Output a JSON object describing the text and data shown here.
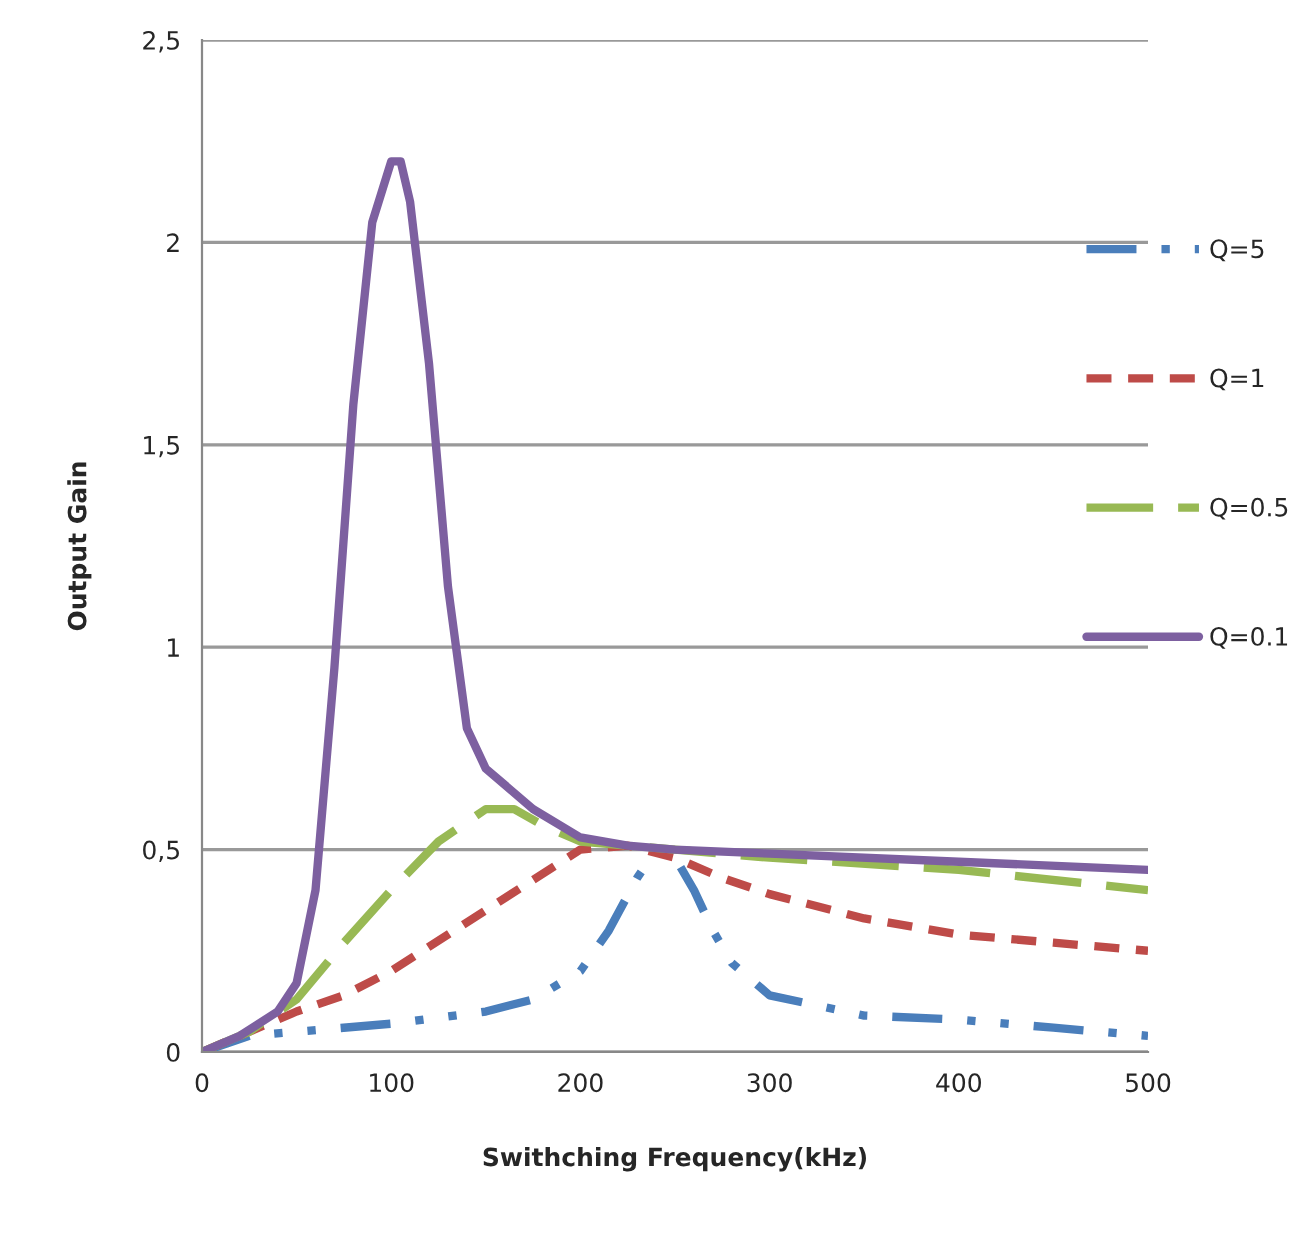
{
  "chart_data": {
    "type": "line",
    "xlabel": "Swithching Frequency(kHz)",
    "ylabel": "Output Gain",
    "xlim": [
      0,
      500
    ],
    "xticks": [
      0,
      100,
      200,
      300,
      400,
      500
    ],
    "ylim": [
      0,
      2.5
    ],
    "yticks": [
      0,
      {
        "value": 0.5,
        "label": "0,5"
      },
      1,
      {
        "value": 1.5,
        "label": "1,5"
      },
      2,
      {
        "value": 2.5,
        "label": "2,5"
      }
    ],
    "grid": "y",
    "legend": "right",
    "marker": "none",
    "series": [
      {
        "name": "Q=5",
        "color": "#4a7ebb",
        "line_style": "dashdot",
        "x": [
          0,
          25,
          50,
          100,
          150,
          175,
          200,
          215,
          230,
          240,
          250,
          260,
          270,
          280,
          300,
          350,
          400,
          450,
          500
        ],
        "values": [
          0,
          0.04,
          0.05,
          0.07,
          0.1,
          0.13,
          0.2,
          0.3,
          0.43,
          0.5,
          0.48,
          0.4,
          0.3,
          0.22,
          0.14,
          0.09,
          0.08,
          0.06,
          0.04
        ]
      },
      {
        "name": "Q=1",
        "color": "#be4b48",
        "line_style": "dotted",
        "x": [
          0,
          25,
          50,
          75,
          100,
          150,
          200,
          225,
          250,
          275,
          300,
          350,
          400,
          450,
          500
        ],
        "values": [
          0,
          0.05,
          0.1,
          0.14,
          0.2,
          0.35,
          0.5,
          0.51,
          0.48,
          0.43,
          0.39,
          0.33,
          0.29,
          0.27,
          0.25
        ]
      },
      {
        "name": "Q=0.5",
        "color": "#98b954",
        "line_style": "dashed",
        "x": [
          0,
          25,
          50,
          75,
          100,
          125,
          150,
          165,
          180,
          200,
          250,
          300,
          400,
          500
        ],
        "values": [
          0,
          0.05,
          0.13,
          0.27,
          0.4,
          0.52,
          0.6,
          0.6,
          0.56,
          0.52,
          0.5,
          0.48,
          0.45,
          0.4
        ]
      },
      {
        "name": "Q=0.1",
        "color": "#7d60a0",
        "line_style": "solid",
        "x": [
          0,
          20,
          40,
          50,
          60,
          70,
          80,
          90,
          100,
          105,
          110,
          120,
          130,
          140,
          150,
          175,
          200,
          225,
          250,
          300,
          400,
          500
        ],
        "values": [
          0,
          0.04,
          0.1,
          0.17,
          0.4,
          0.95,
          1.6,
          2.05,
          2.2,
          2.2,
          2.1,
          1.7,
          1.15,
          0.8,
          0.7,
          0.6,
          0.53,
          0.51,
          0.5,
          0.49,
          0.47,
          0.45
        ]
      }
    ]
  }
}
